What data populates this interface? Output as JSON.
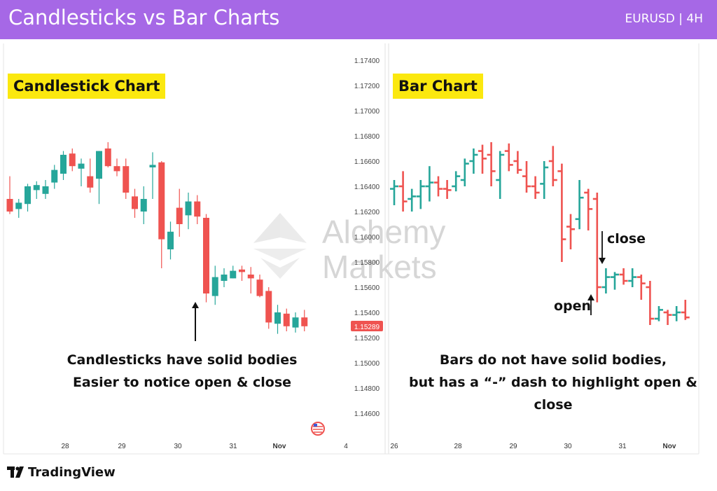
{
  "header": {
    "title": "Candlesticks vs Bar Charts",
    "symbol": "EURUSD | 4H"
  },
  "colors": {
    "up": "#26a69a",
    "down": "#ef5350",
    "header": "#a668e6",
    "label_bg": "#fbe80f",
    "price_tag": "#ef5350"
  },
  "watermark": {
    "line1": "Alchemy",
    "line2": "Markets"
  },
  "price_axis": {
    "ticks": [
      "1.17400",
      "1.17200",
      "1.17000",
      "1.16800",
      "1.16600",
      "1.16400",
      "1.16200",
      "1.16000",
      "1.15800",
      "1.15600",
      "1.15400",
      "1.15200",
      "1.15000",
      "1.14800",
      "1.14600"
    ],
    "current": "1.15289"
  },
  "left_panel": {
    "label": "Candlestick Chart",
    "caption": [
      "Candlesticks have solid bodies",
      "Easier to notice open & close"
    ],
    "x_labels": [
      "28",
      "29",
      "30",
      "31",
      "Nov",
      "4"
    ]
  },
  "right_panel": {
    "label": "Bar Chart",
    "caption": [
      "Bars do not have solid bodies,",
      "but has a “-” dash to highlight open & close"
    ],
    "x_labels": [
      "26",
      "28",
      "29",
      "30",
      "31",
      "Nov"
    ],
    "annotations": {
      "close": "close",
      "open": "open"
    }
  },
  "footer": {
    "brand": "TradingView"
  },
  "chart_data": [
    {
      "type": "candlestick",
      "title": "Candlestick Chart",
      "x_ticks": [
        "28",
        "29",
        "30",
        "31",
        "Nov",
        "4"
      ],
      "ylim": [
        1.145,
        1.175
      ],
      "ohlc": [
        [
          1.163,
          1.1648,
          1.1618,
          1.162
        ],
        [
          1.1622,
          1.163,
          1.1615,
          1.1627
        ],
        [
          1.1626,
          1.1642,
          1.162,
          1.164
        ],
        [
          1.1637,
          1.1644,
          1.163,
          1.1641
        ],
        [
          1.1634,
          1.1645,
          1.163,
          1.164
        ],
        [
          1.1643,
          1.1657,
          1.1638,
          1.1653
        ],
        [
          1.165,
          1.1668,
          1.1645,
          1.1665
        ],
        [
          1.1666,
          1.167,
          1.1652,
          1.1656
        ],
        [
          1.1654,
          1.1662,
          1.164,
          1.1658
        ],
        [
          1.1648,
          1.1662,
          1.1635,
          1.1639
        ],
        [
          1.1646,
          1.1668,
          1.1626,
          1.1668
        ],
        [
          1.167,
          1.1675,
          1.1655,
          1.1656
        ],
        [
          1.1656,
          1.1662,
          1.1648,
          1.1652
        ],
        [
          1.1656,
          1.1662,
          1.163,
          1.1635
        ],
        [
          1.1632,
          1.1638,
          1.1615,
          1.1622
        ],
        [
          1.162,
          1.164,
          1.161,
          1.163
        ],
        [
          1.1655,
          1.1667,
          1.163,
          1.1657
        ],
        [
          1.1659,
          1.166,
          1.1575,
          1.1598
        ],
        [
          1.159,
          1.1612,
          1.1582,
          1.1604
        ],
        [
          1.1623,
          1.1638,
          1.16,
          1.161
        ],
        [
          1.1617,
          1.1635,
          1.1606,
          1.1628
        ],
        [
          1.1628,
          1.1633,
          1.161,
          1.1616
        ],
        [
          1.1615,
          1.1618,
          1.1548,
          1.1555
        ],
        [
          1.1553,
          1.1577,
          1.1546,
          1.1568
        ],
        [
          1.1565,
          1.1575,
          1.156,
          1.157
        ],
        [
          1.1567,
          1.1577,
          1.1567,
          1.1573
        ],
        [
          1.1574,
          1.1577,
          1.1565,
          1.1572
        ],
        [
          1.157,
          1.1576,
          1.1555,
          1.1567
        ],
        [
          1.1566,
          1.157,
          1.1552,
          1.1553
        ],
        [
          1.1557,
          1.156,
          1.1527,
          1.1532
        ],
        [
          1.1531,
          1.1546,
          1.1523,
          1.154
        ],
        [
          1.1539,
          1.1543,
          1.1525,
          1.1529
        ],
        [
          1.1528,
          1.154,
          1.1524,
          1.1536
        ],
        [
          1.1536,
          1.1542,
          1.1525,
          1.1529
        ]
      ]
    },
    {
      "type": "ohlc_bar",
      "title": "Bar Chart",
      "x_ticks": [
        "26",
        "28",
        "29",
        "30",
        "31",
        "Nov"
      ],
      "ylim": [
        1.145,
        1.175
      ],
      "ohlc": [
        [
          1.1638,
          1.1645,
          1.1625,
          1.164
        ],
        [
          1.164,
          1.1652,
          1.162,
          1.1628
        ],
        [
          1.163,
          1.1638,
          1.162,
          1.1632
        ],
        [
          1.1632,
          1.1645,
          1.1622,
          1.164
        ],
        [
          1.164,
          1.1656,
          1.1628,
          1.1643
        ],
        [
          1.1643,
          1.1648,
          1.1632,
          1.1638
        ],
        [
          1.1638,
          1.1645,
          1.163,
          1.1637
        ],
        [
          1.164,
          1.1652,
          1.1636,
          1.1648
        ],
        [
          1.1645,
          1.1662,
          1.164,
          1.1658
        ],
        [
          1.166,
          1.167,
          1.165,
          1.1665
        ],
        [
          1.1668,
          1.1673,
          1.165,
          1.1662
        ],
        [
          1.1665,
          1.1675,
          1.164,
          1.1652
        ],
        [
          1.1645,
          1.1668,
          1.163,
          1.1665
        ],
        [
          1.1668,
          1.1674,
          1.1652,
          1.1657
        ],
        [
          1.166,
          1.1668,
          1.165,
          1.1653
        ],
        [
          1.1648,
          1.166,
          1.1635,
          1.164
        ],
        [
          1.164,
          1.1648,
          1.163,
          1.1635
        ],
        [
          1.1642,
          1.166,
          1.163,
          1.1655
        ],
        [
          1.166,
          1.1672,
          1.164,
          1.1645
        ],
        [
          1.1652,
          1.1658,
          1.158,
          1.1598
        ],
        [
          1.1608,
          1.1618,
          1.159,
          1.1606
        ],
        [
          1.1614,
          1.1645,
          1.1606,
          1.1631
        ],
        [
          1.1635,
          1.1638,
          1.1605,
          1.1622
        ],
        [
          1.163,
          1.1635,
          1.1548,
          1.156
        ],
        [
          1.156,
          1.1575,
          1.1555,
          1.1568
        ],
        [
          1.1568,
          1.1572,
          1.1558,
          1.157
        ],
        [
          1.157,
          1.1575,
          1.1562,
          1.1565
        ],
        [
          1.1565,
          1.1575,
          1.156,
          1.1568
        ],
        [
          1.1568,
          1.157,
          1.155,
          1.1563
        ],
        [
          1.156,
          1.1565,
          1.153,
          1.1535
        ],
        [
          1.1535,
          1.1545,
          1.1533,
          1.1542
        ],
        [
          1.154,
          1.1542,
          1.153,
          1.1538
        ],
        [
          1.1538,
          1.1545,
          1.1533,
          1.154
        ],
        [
          1.154,
          1.155,
          1.1534,
          1.1536
        ]
      ]
    }
  ]
}
